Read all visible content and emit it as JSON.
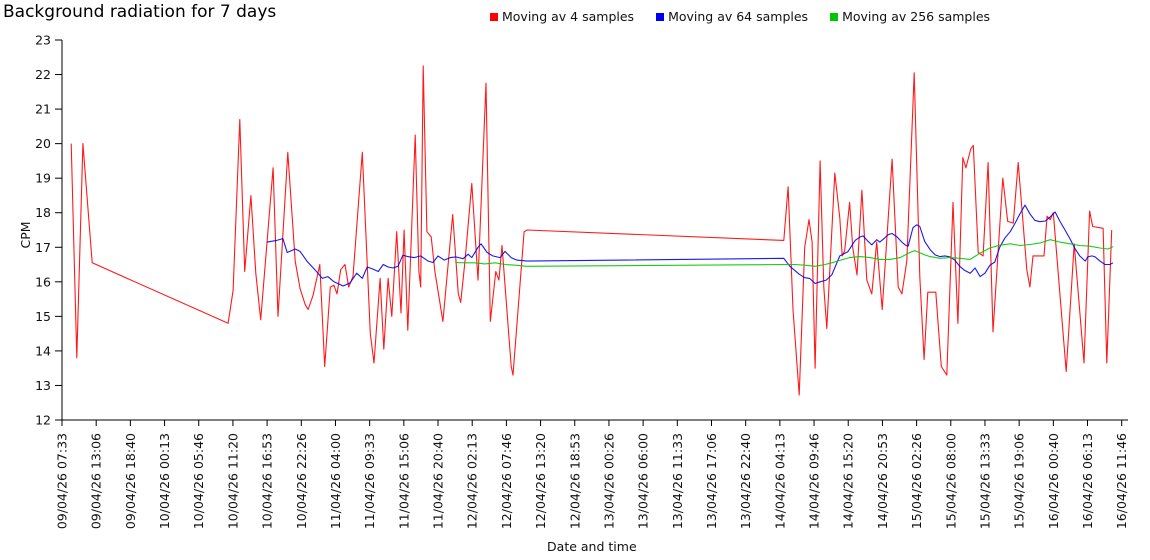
{
  "title": "Background radiation for 7 days",
  "legend": {
    "items": [
      {
        "label": "Moving av 4 samples",
        "color": "#ff0000"
      },
      {
        "label": "Moving av 64 samples",
        "color": "#0000f0"
      },
      {
        "label": "Moving av 256 samples",
        "color": "#00c800"
      }
    ]
  },
  "chart_data": {
    "type": "line",
    "title": "Background radiation for 7 days",
    "xlabel": "Date and time",
    "ylabel": "CPM",
    "ylim": [
      12,
      23
    ],
    "y_ticks": [
      12,
      13,
      14,
      15,
      16,
      17,
      18,
      19,
      20,
      21,
      22,
      23
    ],
    "x_unit": "hours since 09/04/26 07:33",
    "x_range_hours": [
      0,
      172.22
    ],
    "grid": false,
    "legend_position": "top",
    "x_tick_labels": [
      "09/04/26 07:33",
      "09/04/26 13:06",
      "09/04/26 18:40",
      "10/04/26 00:13",
      "10/04/26 05:46",
      "10/04/26 11:20",
      "10/04/26 16:53",
      "10/04/26 22:26",
      "11/04/26 04:00",
      "11/04/26 09:33",
      "11/04/26 15:06",
      "11/04/26 20:40",
      "12/04/26 02:13",
      "12/04/26 07:46",
      "12/04/26 13:20",
      "12/04/26 18:53",
      "13/04/26 00:26",
      "13/04/26 06:00",
      "13/04/26 11:33",
      "13/04/26 17:06",
      "13/04/26 22:40",
      "14/04/26 04:13",
      "14/04/26 09:46",
      "14/04/26 15:20",
      "14/04/26 20:53",
      "15/04/26 02:26",
      "15/04/26 08:00",
      "15/04/26 13:33",
      "15/04/26 19:06",
      "16/04/26 00:40",
      "16/04/26 06:13",
      "16/04/26 11:46"
    ],
    "series": [
      {
        "name": "Moving av 4 samples",
        "color": "#ff0000",
        "points": [
          [
            1.5,
            20.0
          ],
          [
            2.4,
            13.8
          ],
          [
            3.4,
            20.0
          ],
          [
            4.9,
            16.55
          ],
          [
            27.0,
            14.8
          ],
          [
            27.8,
            15.75
          ],
          [
            28.9,
            20.7
          ],
          [
            29.7,
            16.3
          ],
          [
            30.7,
            18.5
          ],
          [
            31.5,
            16.25
          ],
          [
            32.3,
            14.9
          ],
          [
            34.3,
            19.3
          ],
          [
            35.1,
            15.0
          ],
          [
            36.7,
            19.75
          ],
          [
            37.9,
            16.6
          ],
          [
            38.7,
            15.8
          ],
          [
            39.5,
            15.35
          ],
          [
            40.0,
            15.2
          ],
          [
            40.8,
            15.6
          ],
          [
            41.9,
            16.5
          ],
          [
            42.7,
            13.55
          ],
          [
            43.6,
            15.85
          ],
          [
            44.2,
            15.9
          ],
          [
            44.7,
            15.65
          ],
          [
            45.3,
            16.35
          ],
          [
            46.0,
            16.5
          ],
          [
            46.6,
            15.85
          ],
          [
            47.3,
            16.15
          ],
          [
            48.8,
            19.75
          ],
          [
            50.1,
            14.5
          ],
          [
            50.7,
            13.65
          ],
          [
            51.7,
            16.1
          ],
          [
            52.3,
            14.05
          ],
          [
            53.0,
            16.1
          ],
          [
            53.6,
            15.0
          ],
          [
            54.4,
            17.45
          ],
          [
            55.1,
            15.1
          ],
          [
            55.6,
            17.5
          ],
          [
            56.2,
            14.6
          ],
          [
            57.4,
            20.25
          ],
          [
            58.0,
            16.3
          ],
          [
            58.3,
            15.85
          ],
          [
            58.7,
            22.25
          ],
          [
            59.3,
            17.45
          ],
          [
            60.0,
            17.3
          ],
          [
            60.6,
            16.3
          ],
          [
            61.9,
            14.85
          ],
          [
            63.5,
            17.95
          ],
          [
            64.4,
            15.65
          ],
          [
            64.8,
            15.4
          ],
          [
            65.5,
            16.6
          ],
          [
            66.6,
            18.85
          ],
          [
            67.6,
            16.05
          ],
          [
            68.9,
            21.75
          ],
          [
            69.6,
            14.85
          ],
          [
            70.5,
            16.3
          ],
          [
            71.0,
            16.05
          ],
          [
            71.5,
            17.05
          ],
          [
            73.0,
            13.55
          ],
          [
            73.3,
            13.3
          ],
          [
            75.1,
            17.45
          ],
          [
            75.6,
            17.5
          ],
          [
            117.3,
            17.2
          ],
          [
            118.0,
            18.75
          ],
          [
            118.8,
            15.2
          ],
          [
            119.8,
            12.72
          ],
          [
            120.7,
            17.0
          ],
          [
            121.4,
            17.8
          ],
          [
            121.9,
            17.15
          ],
          [
            122.4,
            13.5
          ],
          [
            123.2,
            19.5
          ],
          [
            123.8,
            15.85
          ],
          [
            124.3,
            14.65
          ],
          [
            125.6,
            19.15
          ],
          [
            126.4,
            17.85
          ],
          [
            126.8,
            16.75
          ],
          [
            127.2,
            16.9
          ],
          [
            128.0,
            18.3
          ],
          [
            128.5,
            17.0
          ],
          [
            129.2,
            16.2
          ],
          [
            130.0,
            18.65
          ],
          [
            130.8,
            16.05
          ],
          [
            131.6,
            15.65
          ],
          [
            132.4,
            17.15
          ],
          [
            133.3,
            15.2
          ],
          [
            134.9,
            19.55
          ],
          [
            135.9,
            15.85
          ],
          [
            136.5,
            15.65
          ],
          [
            137.3,
            16.6
          ],
          [
            138.5,
            22.05
          ],
          [
            139.4,
            16.15
          ],
          [
            140.1,
            13.75
          ],
          [
            140.7,
            15.7
          ],
          [
            142.0,
            15.7
          ],
          [
            142.9,
            13.55
          ],
          [
            143.8,
            13.3
          ],
          [
            144.8,
            18.3
          ],
          [
            145.6,
            14.8
          ],
          [
            146.4,
            19.6
          ],
          [
            146.9,
            19.3
          ],
          [
            147.7,
            19.85
          ],
          [
            148.1,
            19.95
          ],
          [
            148.9,
            16.85
          ],
          [
            149.7,
            16.75
          ],
          [
            150.5,
            19.45
          ],
          [
            151.3,
            14.55
          ],
          [
            152.9,
            19.0
          ],
          [
            153.7,
            17.75
          ],
          [
            154.6,
            17.7
          ],
          [
            155.4,
            19.45
          ],
          [
            156.8,
            16.35
          ],
          [
            157.3,
            15.85
          ],
          [
            157.8,
            16.75
          ],
          [
            159.6,
            16.75
          ],
          [
            160.1,
            17.9
          ],
          [
            160.6,
            17.8
          ],
          [
            161.1,
            18.0
          ],
          [
            163.2,
            13.4
          ],
          [
            164.5,
            17.1
          ],
          [
            166.1,
            13.65
          ],
          [
            167.0,
            18.05
          ],
          [
            167.5,
            17.6
          ],
          [
            169.2,
            17.55
          ],
          [
            169.8,
            13.65
          ],
          [
            170.6,
            17.5
          ]
        ]
      },
      {
        "name": "Moving av 64 samples",
        "color": "#0000f0",
        "points": [
          [
            33.3,
            17.15
          ],
          [
            34.9,
            17.2
          ],
          [
            35.9,
            17.25
          ],
          [
            36.6,
            16.85
          ],
          [
            37.9,
            16.95
          ],
          [
            38.7,
            16.88
          ],
          [
            39.8,
            16.6
          ],
          [
            41.1,
            16.35
          ],
          [
            42.3,
            16.1
          ],
          [
            43.2,
            16.15
          ],
          [
            44.2,
            16.0
          ],
          [
            45.7,
            15.88
          ],
          [
            46.8,
            15.97
          ],
          [
            47.9,
            16.25
          ],
          [
            48.8,
            16.1
          ],
          [
            49.6,
            16.43
          ],
          [
            50.5,
            16.37
          ],
          [
            51.4,
            16.3
          ],
          [
            52.2,
            16.5
          ],
          [
            53.0,
            16.43
          ],
          [
            53.8,
            16.4
          ],
          [
            54.6,
            16.45
          ],
          [
            55.4,
            16.77
          ],
          [
            56.2,
            16.73
          ],
          [
            57.2,
            16.7
          ],
          [
            58.3,
            16.75
          ],
          [
            59.5,
            16.6
          ],
          [
            60.3,
            16.56
          ],
          [
            61.1,
            16.75
          ],
          [
            62.1,
            16.63
          ],
          [
            63.1,
            16.7
          ],
          [
            64.0,
            16.72
          ],
          [
            65.2,
            16.67
          ],
          [
            66.0,
            16.8
          ],
          [
            66.6,
            16.7
          ],
          [
            67.6,
            17.0
          ],
          [
            68.1,
            17.1
          ],
          [
            69.1,
            16.85
          ],
          [
            70.0,
            16.75
          ],
          [
            71.2,
            16.7
          ],
          [
            72.0,
            16.88
          ],
          [
            73.0,
            16.7
          ],
          [
            73.9,
            16.63
          ],
          [
            75.6,
            16.6
          ],
          [
            117.3,
            16.68
          ],
          [
            118.3,
            16.45
          ],
          [
            119.8,
            16.22
          ],
          [
            120.7,
            16.12
          ],
          [
            121.5,
            16.1
          ],
          [
            122.4,
            15.95
          ],
          [
            123.2,
            16.0
          ],
          [
            124.2,
            16.05
          ],
          [
            125.1,
            16.2
          ],
          [
            126.4,
            16.75
          ],
          [
            127.7,
            16.87
          ],
          [
            128.9,
            17.2
          ],
          [
            129.7,
            17.3
          ],
          [
            130.2,
            17.33
          ],
          [
            131.0,
            17.17
          ],
          [
            131.6,
            17.07
          ],
          [
            132.4,
            17.22
          ],
          [
            132.9,
            17.15
          ],
          [
            133.6,
            17.25
          ],
          [
            134.2,
            17.36
          ],
          [
            134.9,
            17.4
          ],
          [
            135.7,
            17.3
          ],
          [
            136.5,
            17.15
          ],
          [
            137.0,
            17.07
          ],
          [
            137.5,
            17.03
          ],
          [
            138.3,
            17.57
          ],
          [
            138.9,
            17.65
          ],
          [
            139.4,
            17.6
          ],
          [
            140.2,
            17.17
          ],
          [
            141.1,
            16.93
          ],
          [
            141.9,
            16.78
          ],
          [
            142.7,
            16.73
          ],
          [
            143.5,
            16.75
          ],
          [
            144.3,
            16.72
          ],
          [
            145.1,
            16.63
          ],
          [
            145.9,
            16.45
          ],
          [
            146.7,
            16.33
          ],
          [
            147.6,
            16.25
          ],
          [
            148.4,
            16.4
          ],
          [
            149.2,
            16.15
          ],
          [
            150.0,
            16.25
          ],
          [
            150.8,
            16.48
          ],
          [
            151.6,
            16.57
          ],
          [
            152.4,
            17.0
          ],
          [
            153.2,
            17.26
          ],
          [
            154.1,
            17.45
          ],
          [
            154.9,
            17.7
          ],
          [
            155.7,
            17.97
          ],
          [
            156.5,
            18.22
          ],
          [
            157.3,
            17.97
          ],
          [
            158.1,
            17.78
          ],
          [
            158.9,
            17.74
          ],
          [
            159.8,
            17.76
          ],
          [
            160.6,
            17.88
          ],
          [
            161.4,
            18.02
          ],
          [
            162.2,
            17.75
          ],
          [
            163.0,
            17.5
          ],
          [
            163.8,
            17.25
          ],
          [
            164.6,
            16.97
          ],
          [
            165.4,
            16.75
          ],
          [
            166.3,
            16.6
          ],
          [
            166.7,
            16.72
          ],
          [
            167.4,
            16.75
          ],
          [
            167.9,
            16.72
          ],
          [
            168.7,
            16.6
          ],
          [
            169.5,
            16.5
          ],
          [
            170.3,
            16.5
          ],
          [
            170.8,
            16.55
          ]
        ]
      },
      {
        "name": "Moving av 256 samples",
        "color": "#00c800",
        "points": [
          [
            63.9,
            16.56
          ],
          [
            65.5,
            16.55
          ],
          [
            67.1,
            16.55
          ],
          [
            68.7,
            16.52
          ],
          [
            70.4,
            16.55
          ],
          [
            72.0,
            16.5
          ],
          [
            73.6,
            16.48
          ],
          [
            75.6,
            16.45
          ],
          [
            117.3,
            16.5
          ],
          [
            119.1,
            16.5
          ],
          [
            120.7,
            16.48
          ],
          [
            122.4,
            16.45
          ],
          [
            124.0,
            16.5
          ],
          [
            125.1,
            16.55
          ],
          [
            126.4,
            16.62
          ],
          [
            128.0,
            16.7
          ],
          [
            129.7,
            16.73
          ],
          [
            131.3,
            16.7
          ],
          [
            132.9,
            16.65
          ],
          [
            134.6,
            16.65
          ],
          [
            136.2,
            16.7
          ],
          [
            137.8,
            16.85
          ],
          [
            138.6,
            16.9
          ],
          [
            139.4,
            16.84
          ],
          [
            140.2,
            16.78
          ],
          [
            141.1,
            16.73
          ],
          [
            142.7,
            16.68
          ],
          [
            144.3,
            16.7
          ],
          [
            145.9,
            16.68
          ],
          [
            147.6,
            16.65
          ],
          [
            149.2,
            16.83
          ],
          [
            150.8,
            16.98
          ],
          [
            152.4,
            17.06
          ],
          [
            154.1,
            17.1
          ],
          [
            155.7,
            17.05
          ],
          [
            157.3,
            17.08
          ],
          [
            158.9,
            17.12
          ],
          [
            160.6,
            17.22
          ],
          [
            162.2,
            17.15
          ],
          [
            163.8,
            17.1
          ],
          [
            165.4,
            17.05
          ],
          [
            167.0,
            17.03
          ],
          [
            168.7,
            16.98
          ],
          [
            170.0,
            16.95
          ],
          [
            170.8,
            17.02
          ]
        ]
      }
    ]
  }
}
